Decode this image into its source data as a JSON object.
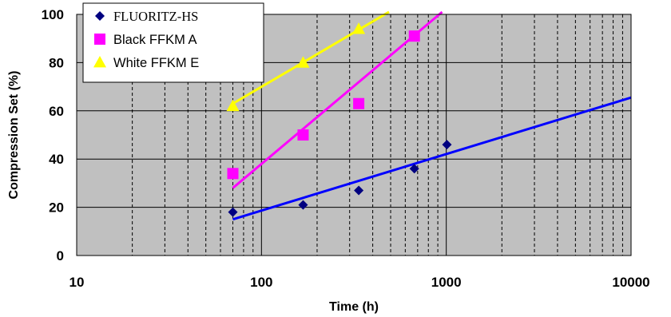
{
  "chart_data": {
    "type": "scatter",
    "title": "",
    "xlabel": "Time (h)",
    "ylabel": "Compression Set (%)",
    "x_scale": "log",
    "xlim": [
      10,
      10000
    ],
    "ylim": [
      0,
      100
    ],
    "x_ticks": [
      10,
      100,
      1000,
      10000
    ],
    "x_tick_labels": [
      "10",
      "100",
      "1000",
      "10000"
    ],
    "y_ticks": [
      0,
      20,
      40,
      60,
      80,
      100
    ],
    "y_tick_labels": [
      "0",
      "20",
      "40",
      "60",
      "80",
      "100"
    ],
    "grid": true,
    "plot_background": "#c0c0c0",
    "legend_position": "top-left",
    "series": [
      {
        "name": "FLUORITZ-HS",
        "marker": "diamond",
        "color": "#000080",
        "line_color": "#0000ff",
        "points": [
          [
            70,
            18
          ],
          [
            168,
            21
          ],
          [
            336,
            27
          ],
          [
            672,
            36
          ],
          [
            1008,
            46
          ]
        ],
        "trend": [
          [
            70,
            15
          ],
          [
            10000,
            65.5
          ]
        ]
      },
      {
        "name": "Black FFKM A",
        "marker": "square",
        "color": "#ff00ff",
        "line_color": "#ff00ff",
        "points": [
          [
            70,
            34
          ],
          [
            168,
            50
          ],
          [
            336,
            63
          ],
          [
            672,
            91
          ]
        ],
        "trend": [
          [
            70,
            28
          ],
          [
            950,
            101
          ]
        ]
      },
      {
        "name": "White FFKM E",
        "marker": "triangle",
        "color": "#ffff00",
        "line_color": "#ffff00",
        "points": [
          [
            70,
            62
          ],
          [
            168,
            80
          ],
          [
            336,
            94
          ]
        ],
        "trend": [
          [
            70,
            63
          ],
          [
            490,
            101
          ]
        ]
      }
    ]
  }
}
